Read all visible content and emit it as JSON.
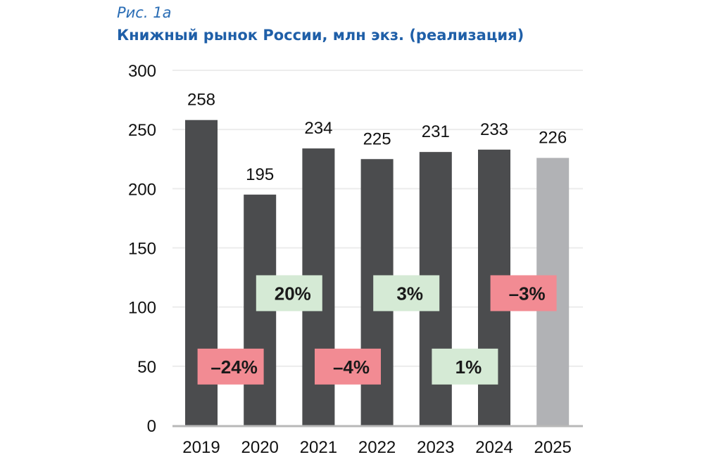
{
  "figure_label": "Рис. 1а",
  "chart_data": {
    "type": "bar",
    "title": "Книжный рынок России, млн экз. (реализация)",
    "xlabel": "",
    "ylabel": "",
    "ylim": [
      0,
      300
    ],
    "yticks": [
      0,
      50,
      100,
      150,
      200,
      250,
      300
    ],
    "grid": true,
    "categories": [
      "2019",
      "2020",
      "2021",
      "2022",
      "2023",
      "2024",
      "2025"
    ],
    "values": [
      258,
      195,
      234,
      225,
      231,
      233,
      226
    ],
    "bar_colors": [
      "#4b4c4e",
      "#4b4c4e",
      "#4b4c4e",
      "#4b4c4e",
      "#4b4c4e",
      "#4b4c4e",
      "#b1b2b5"
    ],
    "changes": [
      {
        "label": "–24%",
        "value": -24,
        "between": [
          "2019",
          "2020"
        ],
        "level": 50
      },
      {
        "label": "20%",
        "value": 20,
        "between": [
          "2020",
          "2021"
        ],
        "level": 112
      },
      {
        "label": "–4%",
        "value": -4,
        "between": [
          "2021",
          "2022"
        ],
        "level": 50
      },
      {
        "label": "3%",
        "value": 3,
        "between": [
          "2022",
          "2023"
        ],
        "level": 112
      },
      {
        "label": "1%",
        "value": 1,
        "between": [
          "2023",
          "2024"
        ],
        "level": 50
      },
      {
        "label": "–3%",
        "value": -3,
        "between": [
          "2024",
          "2025"
        ],
        "level": 112
      }
    ],
    "positive_color": "#d5ead5",
    "negative_color": "#f28b93"
  }
}
